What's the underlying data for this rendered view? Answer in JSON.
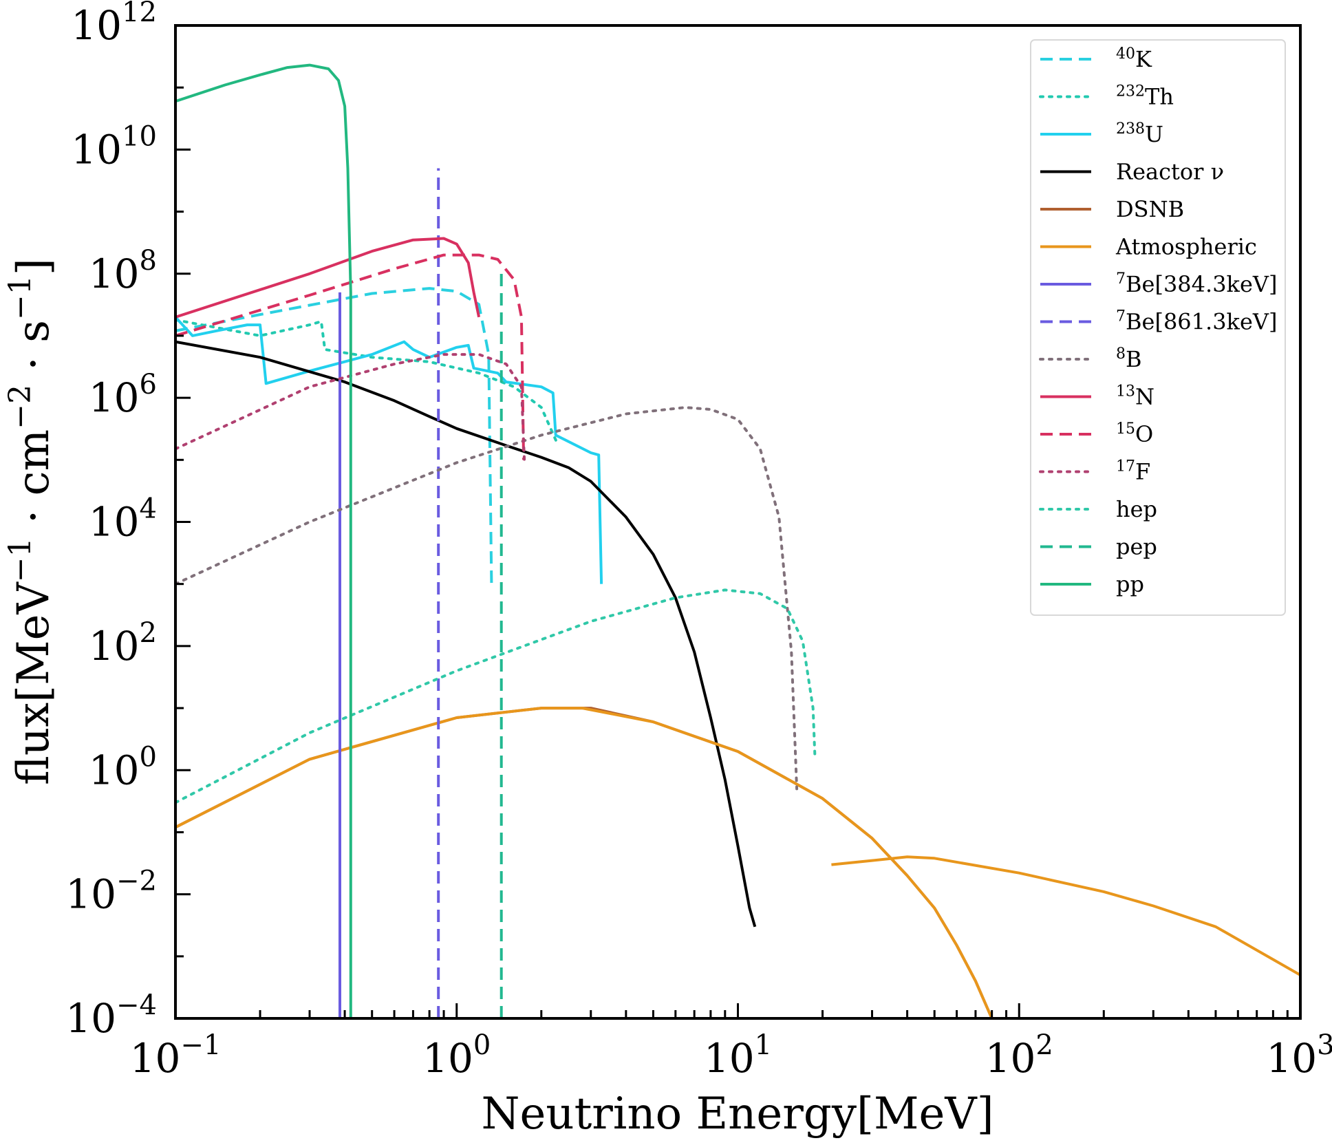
{
  "chart_data": {
    "type": "line",
    "title": "",
    "xlabel": "Neutrino Energy[MeV]",
    "ylabel": {
      "base": "flux[MeV",
      "exp1": "−1",
      "mid1": " · cm",
      "exp2": "−2",
      "mid2": " · s",
      "exp3": "−1",
      "end": "]"
    },
    "xscale": "log",
    "yscale": "log",
    "xlim": [
      0.1,
      1000
    ],
    "ylim": [
      0.0001,
      1000000000000
    ],
    "grid": false,
    "legend_position": "top-right",
    "x_ticks": [
      {
        "value": 0.1,
        "base": "10",
        "exp": "−1"
      },
      {
        "value": 1,
        "base": "10",
        "exp": "0"
      },
      {
        "value": 10,
        "base": "10",
        "exp": "1"
      },
      {
        "value": 100,
        "base": "10",
        "exp": "2"
      },
      {
        "value": 1000,
        "base": "10",
        "exp": "3"
      }
    ],
    "y_ticks": [
      {
        "value": 0.0001,
        "base": "10",
        "exp": "−4"
      },
      {
        "value": 0.01,
        "base": "10",
        "exp": "−2"
      },
      {
        "value": 1,
        "base": "10",
        "exp": "0"
      },
      {
        "value": 100,
        "base": "10",
        "exp": "2"
      },
      {
        "value": 10000,
        "base": "10",
        "exp": "4"
      },
      {
        "value": 1000000,
        "base": "10",
        "exp": "6"
      },
      {
        "value": 100000000,
        "base": "10",
        "exp": "8"
      },
      {
        "value": 10000000000,
        "base": "10",
        "exp": "10"
      },
      {
        "value": 1000000000000,
        "base": "10",
        "exp": "12"
      }
    ],
    "series": [
      {
        "name_sup": "40",
        "name": "K",
        "color": "#2ad0e0",
        "dash": "dashed",
        "x": [
          0.1,
          0.2,
          0.5,
          0.8,
          1.0,
          1.2,
          1.3,
          1.33
        ],
        "y": [
          12000000,
          22000000,
          48000000,
          58000000,
          52000000,
          32000000,
          5000000,
          1000
        ]
      },
      {
        "name_sup": "232",
        "name": "Th",
        "color": "#22c9b0",
        "dash": "dotted",
        "x": [
          0.1,
          0.2,
          0.3,
          0.33,
          0.34,
          0.5,
          0.8,
          1.2,
          1.6,
          2.0,
          2.26
        ],
        "y": [
          18000000,
          10000000,
          15000000,
          17000000,
          6000000,
          4500000,
          3800000,
          2500000,
          1500000,
          700000,
          200000
        ]
      },
      {
        "name_sup": "238",
        "name": "U",
        "color": "#22d0ee",
        "dash": "solid",
        "x": [
          0.1,
          0.115,
          0.14,
          0.18,
          0.2,
          0.21,
          0.3,
          0.5,
          0.65,
          0.7,
          0.8,
          1.0,
          1.1,
          1.15,
          1.4,
          1.5,
          2.0,
          2.2,
          2.25,
          3.0,
          3.2,
          3.27
        ],
        "y": [
          20000000,
          10000000,
          12000000,
          15000000,
          15000000,
          1700000,
          2700000,
          5000000,
          8000000,
          6000000,
          4500000,
          6500000,
          7000000,
          3000000,
          2500000,
          1800000,
          1500000,
          1200000,
          250000,
          130000,
          120000,
          1000
        ]
      },
      {
        "name": "Reactor ν",
        "color": "#000000",
        "dash": "solid",
        "x": [
          0.1,
          0.2,
          0.4,
          0.6,
          0.8,
          1.0,
          1.5,
          2.0,
          2.5,
          3.0,
          4.0,
          5.0,
          6.0,
          7.0,
          8.0,
          9.0,
          10.0,
          11.0,
          11.5
        ],
        "y": [
          8000000,
          4500000,
          1800000,
          900000,
          500000,
          320000,
          170000,
          110000,
          75000,
          45000,
          12000,
          3000,
          600,
          80,
          7,
          0.7,
          0.06,
          0.006,
          0.003
        ]
      },
      {
        "name": "DSNB",
        "color": "#b06030",
        "dash": "solid",
        "x": [
          0.1,
          0.3,
          1.0,
          2.0,
          3.0,
          5.0,
          10.0,
          20.0,
          30.0,
          40.0,
          50.0,
          60.0,
          70.0,
          80.0
        ],
        "y": [
          0.12,
          1.5,
          7,
          10,
          10,
          6,
          2,
          0.35,
          0.08,
          0.02,
          0.006,
          0.0015,
          0.0004,
          0.0001
        ]
      },
      {
        "name": "Atmospheric",
        "color": "#e8961c",
        "dash": "solid",
        "x": [
          0.1,
          0.3,
          1.0,
          2.0,
          2.8,
          5.0,
          10.0,
          20.0,
          30.0,
          40.0,
          50.0,
          60.0,
          70.0,
          80.0,
          21.5,
          30.0,
          40.0,
          50.0,
          100.0,
          200.0,
          300.0,
          500.0,
          1000.0
        ],
        "gap_after": 13,
        "y": [
          0.12,
          1.5,
          7,
          10,
          10,
          6,
          2,
          0.35,
          0.08,
          0.02,
          0.006,
          0.0015,
          0.0004,
          0.0001,
          0.03,
          0.035,
          0.04,
          0.038,
          0.022,
          0.011,
          0.0065,
          0.003,
          0.0005
        ]
      },
      {
        "name_sup": "7",
        "name": "Be[384.3keV]",
        "color": "#6a5be0",
        "dash": "solid",
        "x": [
          0.3843,
          0.3843
        ],
        "y": [
          0.0001,
          50000000
        ]
      },
      {
        "name_sup": "7",
        "name": "Be[861.3keV]",
        "color": "#6a5be0",
        "dash": "dashed",
        "x": [
          0.8613,
          0.8613
        ],
        "y": [
          0.0001,
          5000000000
        ]
      },
      {
        "name_sup": "8",
        "name": "B",
        "color": "#80707a",
        "dash": "dotted",
        "x": [
          0.1,
          0.3,
          1.0,
          2.0,
          4.0,
          6.5,
          8.0,
          10.0,
          12.0,
          14.0,
          15.5,
          16.2
        ],
        "y": [
          1000,
          10000,
          90000,
          250000,
          550000,
          700000,
          650000,
          450000,
          150000,
          12000,
          80,
          0.5
        ]
      },
      {
        "name_sup": "13",
        "name": "N",
        "color": "#d83060",
        "dash": "solid",
        "x": [
          0.1,
          0.3,
          0.5,
          0.7,
          0.9,
          1.0,
          1.1,
          1.15,
          1.2
        ],
        "y": [
          20000000,
          100000000,
          230000000,
          350000000,
          370000000,
          300000000,
          150000000,
          50000000,
          20000000
        ]
      },
      {
        "name_sup": "15",
        "name": "O",
        "color": "#d83060",
        "dash": "dashed",
        "x": [
          0.1,
          0.3,
          0.6,
          0.9,
          1.2,
          1.4,
          1.6,
          1.7,
          1.73
        ],
        "y": [
          10000000,
          45000000,
          120000000,
          200000000,
          200000000,
          170000000,
          80000000,
          20000000,
          100000
        ]
      },
      {
        "name_sup": "17",
        "name": "F",
        "color": "#b04070",
        "dash": "dotted",
        "x": [
          0.1,
          0.3,
          0.6,
          0.9,
          1.2,
          1.5,
          1.7,
          1.74
        ],
        "y": [
          150000,
          1500000,
          3500000,
          5000000,
          5000000,
          3500000,
          1500000,
          100000
        ]
      },
      {
        "name": "hep",
        "color": "#30c8a8",
        "dash": "dotted",
        "x": [
          0.1,
          0.3,
          1.0,
          3.0,
          6.0,
          9.0,
          12.0,
          15.0,
          17.0,
          18.5,
          18.8
        ],
        "y": [
          0.3,
          4,
          40,
          250,
          600,
          800,
          700,
          400,
          120,
          10,
          1.5
        ]
      },
      {
        "name": "pep",
        "color": "#22b890",
        "dash": "dashed",
        "x": [
          1.442,
          1.442
        ],
        "y": [
          0.0001,
          100000000
        ]
      },
      {
        "name": "pp",
        "color": "#22b880",
        "dash": "solid",
        "x": [
          0.1,
          0.15,
          0.2,
          0.25,
          0.3,
          0.35,
          0.38,
          0.4,
          0.41,
          0.42,
          0.42
        ],
        "y": [
          60000000000,
          110000000000,
          160000000000,
          210000000000,
          230000000000,
          200000000000,
          130000000000,
          50000000000,
          5000000000,
          50000000,
          0.0001
        ]
      }
    ]
  }
}
